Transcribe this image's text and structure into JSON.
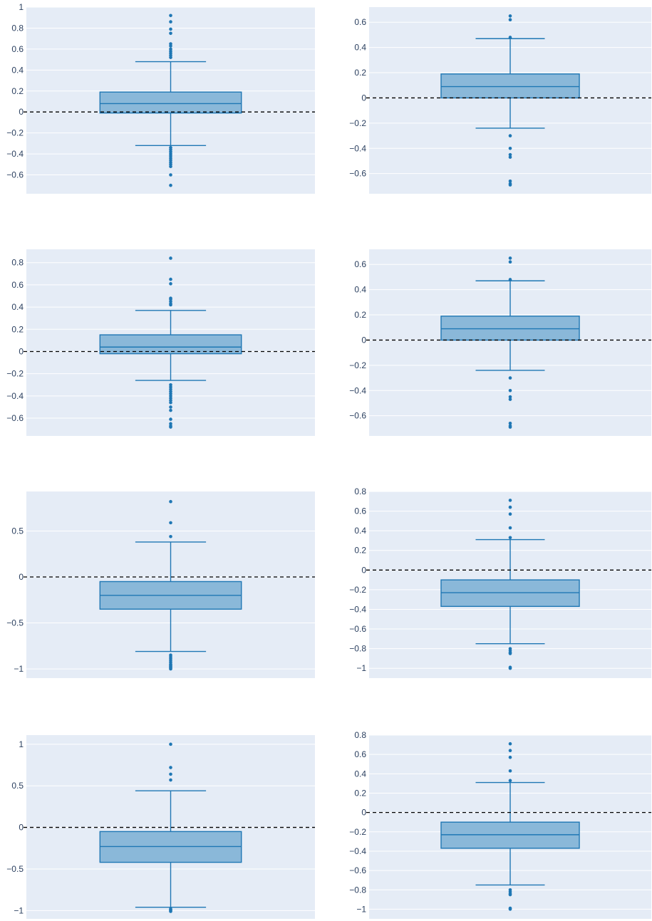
{
  "colors": {
    "plot_bg": "#e5ecf6",
    "grid": "#ffffff",
    "box_fill": "#8ab8d9",
    "box_line": "#1f77b4",
    "marker": "#1f77b4",
    "reference_line": "#000000",
    "tick_text": "#2a3f5f"
  },
  "chart_data": [
    {
      "type": "box",
      "grid": true,
      "reference_line": {
        "y": 0,
        "style": "dashed"
      },
      "yticks": [
        1,
        0.8,
        0.6,
        0.4,
        0.2,
        0,
        -0.2,
        -0.4,
        -0.6
      ],
      "ytick_labels": [
        "1",
        "0.8",
        "0.6",
        "0.4",
        "0.2",
        "0",
        "−0.2",
        "−0.4",
        "−0.6"
      ],
      "ylim": [
        -0.78,
        1.0
      ],
      "box": {
        "lower_whisker": -0.32,
        "q1": -0.01,
        "median": 0.08,
        "q3": 0.19,
        "upper_whisker": 0.48
      },
      "outliers": [
        0.92,
        0.86,
        0.79,
        0.75,
        0.65,
        0.63,
        0.6,
        0.58,
        0.56,
        0.54,
        0.52,
        -0.34,
        -0.36,
        -0.38,
        -0.4,
        -0.42,
        -0.44,
        -0.46,
        -0.48,
        -0.5,
        -0.52,
        -0.6,
        -0.7
      ]
    },
    {
      "type": "box",
      "grid": true,
      "reference_line": {
        "y": 0,
        "style": "dashed"
      },
      "yticks": [
        0.6,
        0.4,
        0.2,
        0,
        -0.2,
        -0.4,
        -0.6
      ],
      "ytick_labels": [
        "0.6",
        "0.4",
        "0.2",
        "0",
        "−0.2",
        "−0.4",
        "−0.6"
      ],
      "ylim": [
        -0.76,
        0.72
      ],
      "box": {
        "lower_whisker": -0.24,
        "q1": 0.0,
        "median": 0.09,
        "q3": 0.19,
        "upper_whisker": 0.47
      },
      "outliers": [
        0.65,
        0.62,
        0.48,
        -0.3,
        -0.4,
        -0.45,
        -0.47,
        -0.66,
        -0.68,
        -0.69
      ]
    },
    {
      "type": "box",
      "grid": true,
      "reference_line": {
        "y": 0,
        "style": "dashed"
      },
      "yticks": [
        0.8,
        0.6,
        0.4,
        0.2,
        0,
        -0.2,
        -0.4,
        -0.6
      ],
      "ytick_labels": [
        "0.8",
        "0.6",
        "0.4",
        "0.2",
        "0",
        "−0.2",
        "−0.4",
        "−0.6"
      ],
      "ylim": [
        -0.76,
        0.92
      ],
      "box": {
        "lower_whisker": -0.26,
        "q1": -0.02,
        "median": 0.04,
        "q3": 0.15,
        "upper_whisker": 0.37
      },
      "outliers": [
        0.84,
        0.65,
        0.61,
        0.48,
        0.47,
        0.45,
        0.43,
        0.42,
        -0.3,
        -0.32,
        -0.34,
        -0.36,
        -0.38,
        -0.4,
        -0.42,
        -0.44,
        -0.46,
        -0.5,
        -0.53,
        -0.61,
        -0.65,
        -0.67,
        -0.68
      ]
    },
    {
      "type": "box",
      "grid": true,
      "reference_line": {
        "y": 0,
        "style": "dashed"
      },
      "yticks": [
        0.6,
        0.4,
        0.2,
        0,
        -0.2,
        -0.4,
        -0.6
      ],
      "ytick_labels": [
        "0.6",
        "0.4",
        "0.2",
        "0",
        "−0.2",
        "−0.4",
        "−0.6"
      ],
      "ylim": [
        -0.76,
        0.72
      ],
      "box": {
        "lower_whisker": -0.24,
        "q1": 0.0,
        "median": 0.09,
        "q3": 0.19,
        "upper_whisker": 0.47
      },
      "outliers": [
        0.65,
        0.62,
        0.48,
        -0.3,
        -0.4,
        -0.45,
        -0.47,
        -0.66,
        -0.68,
        -0.69
      ]
    },
    {
      "type": "box",
      "grid": true,
      "reference_line": {
        "y": 0,
        "style": "dashed"
      },
      "yticks": [
        0.5,
        0,
        -0.5,
        -1
      ],
      "ytick_labels": [
        "0.5",
        "0",
        "−0.5",
        "−1"
      ],
      "ylim": [
        -1.1,
        0.93
      ],
      "box": {
        "lower_whisker": -0.81,
        "q1": -0.35,
        "median": -0.2,
        "q3": -0.05,
        "upper_whisker": 0.38
      },
      "outliers": [
        0.82,
        0.59,
        0.44,
        -0.85,
        -0.87,
        -0.89,
        -0.91,
        -0.93,
        -0.95,
        -0.96,
        -0.97,
        -0.98,
        -0.99,
        -1.0
      ]
    },
    {
      "type": "box",
      "grid": true,
      "reference_line": {
        "y": 0,
        "style": "dashed"
      },
      "yticks": [
        0.8,
        0.6,
        0.4,
        0.2,
        0,
        -0.2,
        -0.4,
        -0.6,
        -0.8,
        -1
      ],
      "ytick_labels": [
        "0.8",
        "0.6",
        "0.4",
        "0.2",
        "0",
        "−0.2",
        "−0.4",
        "−0.6",
        "−0.8",
        "−1"
      ],
      "ylim": [
        -1.1,
        0.8
      ],
      "box": {
        "lower_whisker": -0.75,
        "q1": -0.37,
        "median": -0.23,
        "q3": -0.1,
        "upper_whisker": 0.31
      },
      "outliers": [
        0.71,
        0.64,
        0.57,
        0.43,
        0.33,
        -0.8,
        -0.82,
        -0.84,
        -0.85,
        -0.99,
        -1.0
      ]
    },
    {
      "type": "box",
      "grid": true,
      "reference_line": {
        "y": 0,
        "style": "dashed"
      },
      "yticks": [
        1,
        0.5,
        0,
        -0.5,
        -1
      ],
      "ytick_labels": [
        "1",
        "0.5",
        "0",
        "−0.5",
        "−1"
      ],
      "ylim": [
        -1.1,
        1.11
      ],
      "box": {
        "lower_whisker": -0.96,
        "q1": -0.42,
        "median": -0.23,
        "q3": -0.05,
        "upper_whisker": 0.44
      },
      "outliers": [
        1.0,
        0.72,
        0.64,
        0.57,
        -0.98,
        -0.99,
        -1.0,
        -1.01
      ]
    },
    {
      "type": "box",
      "grid": true,
      "reference_line": {
        "y": 0,
        "style": "dashed"
      },
      "yticks": [
        0.8,
        0.6,
        0.4,
        0.2,
        0,
        -0.2,
        -0.4,
        -0.6,
        -0.8,
        -1
      ],
      "ytick_labels": [
        "0.8",
        "0.6",
        "0.4",
        "0.2",
        "0",
        "−0.2",
        "−0.4",
        "−0.6",
        "−0.8",
        "−1"
      ],
      "ylim": [
        -1.1,
        0.8
      ],
      "box": {
        "lower_whisker": -0.75,
        "q1": -0.37,
        "median": -0.23,
        "q3": -0.1,
        "upper_whisker": 0.31
      },
      "outliers": [
        0.71,
        0.64,
        0.57,
        0.43,
        0.33,
        -0.8,
        -0.82,
        -0.84,
        -0.85,
        -0.99,
        -1.0
      ]
    }
  ]
}
